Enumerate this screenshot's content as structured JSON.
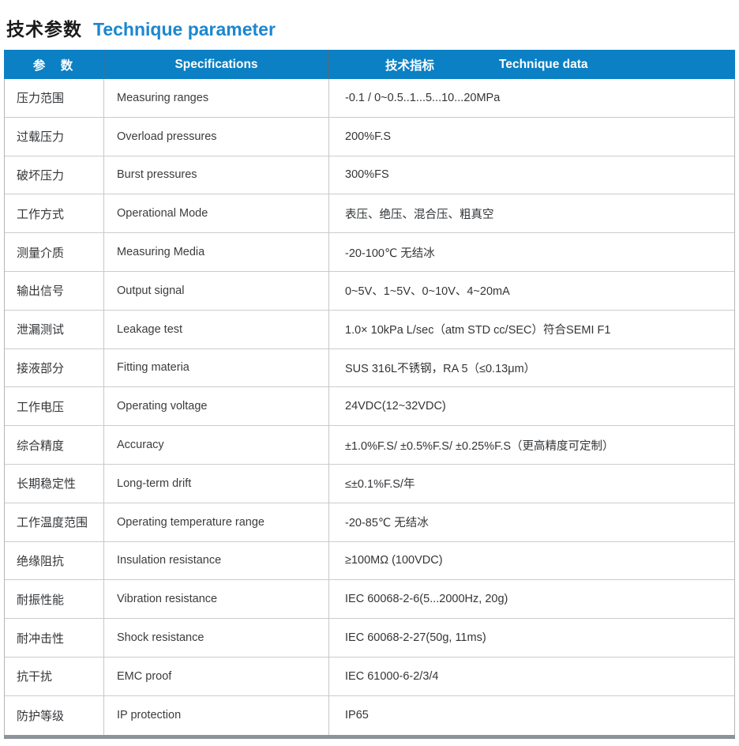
{
  "title": {
    "zh": "技术参数",
    "en": "Technique parameter"
  },
  "colors": {
    "header_bg": "#0b80c4",
    "title_en_blue": "#1b87d0",
    "bottom_bar_gray": "#8d939b"
  },
  "table": {
    "header": {
      "param": "参　数",
      "specifications": "Specifications",
      "technique_zh": "技术指标",
      "technique_en": "Technique data"
    },
    "rows": [
      {
        "param": "压力范围",
        "spec": "Measuring ranges",
        "value": "-0.1 / 0~0.5..1...5...10...20MPa"
      },
      {
        "param": "过载压力",
        "spec": "Overload pressures",
        "value": "200%F.S"
      },
      {
        "param": "破坏压力",
        "spec": "Burst pressures",
        "value": "300%FS"
      },
      {
        "param": "工作方式",
        "spec": "Operational Mode",
        "value": "表压、绝压、混合压、粗真空"
      },
      {
        "param": "测量介质",
        "spec": "Measuring Media",
        "value": "-20-100℃  无结冰"
      },
      {
        "param": "输出信号",
        "spec": "Output signal",
        "value": "0~5V、1~5V、0~10V、4~20mA"
      },
      {
        "param": "泄漏测试",
        "spec": "Leakage test",
        "value": "1.0× 10kPa L/sec（atm STD cc/SEC）符合SEMI F1"
      },
      {
        "param": "接液部分",
        "spec": "Fitting materia",
        "value": "SUS 316L不锈钢，RA 5（≤0.13μm）"
      },
      {
        "param": "工作电压",
        "spec": "Operating voltage",
        "value": "24VDC(12~32VDC)"
      },
      {
        "param": "综合精度",
        "spec": "Accuracy",
        "value": "±1.0%F.S/ ±0.5%F.S/ ±0.25%F.S（更高精度可定制）"
      },
      {
        "param": "长期稳定性",
        "spec": "Long-term drift",
        "value": "≤±0.1%F.S/年"
      },
      {
        "param": "工作温度范围",
        "spec": "Operating temperature range",
        "value": "-20-85℃ 无结冰"
      },
      {
        "param": "绝缘阻抗",
        "spec": "Insulation resistance",
        "value": "≥100MΩ (100VDC)"
      },
      {
        "param": "耐振性能",
        "spec": "Vibration resistance",
        "value": "IEC 60068-2-6(5...2000Hz, 20g)"
      },
      {
        "param": "耐冲击性",
        "spec": "Shock resistance",
        "value": "IEC 60068-2-27(50g, 11ms)"
      },
      {
        "param": "抗干扰",
        "spec": "EMC proof",
        "value": "IEC 61000-6-2/3/4"
      },
      {
        "param": "防护等级",
        "spec": "IP protection",
        "value": "IP65"
      }
    ]
  }
}
